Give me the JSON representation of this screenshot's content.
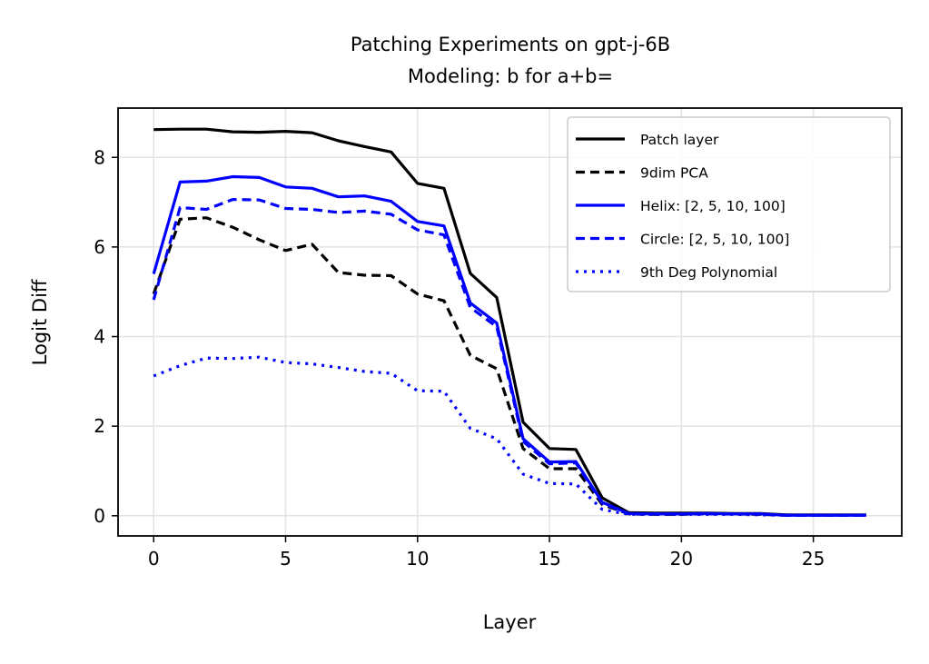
{
  "chart_data": {
    "type": "line",
    "title": "Patching Experiments on gpt-j-6B",
    "subtitle": "Modeling: b for a+b=",
    "xlabel": "Layer",
    "ylabel": "Logit Diff",
    "xlim": [
      -1.35,
      28.35
    ],
    "ylim": [
      -0.45,
      9.1
    ],
    "xticks": [
      0,
      5,
      10,
      15,
      20,
      25
    ],
    "yticks": [
      0,
      2,
      4,
      6,
      8
    ],
    "grid": true,
    "legend_position": "top-right",
    "x": [
      0,
      1,
      2,
      3,
      4,
      5,
      6,
      7,
      8,
      9,
      10,
      11,
      12,
      13,
      14,
      15,
      16,
      17,
      18,
      19,
      20,
      21,
      22,
      23,
      24,
      25,
      26,
      27
    ],
    "series": [
      {
        "name": "Patch layer",
        "color": "#000000",
        "style": "solid",
        "values": [
          8.62,
          8.63,
          8.63,
          8.57,
          8.56,
          8.58,
          8.55,
          8.37,
          8.24,
          8.12,
          7.42,
          7.31,
          5.41,
          4.87,
          2.09,
          1.5,
          1.48,
          0.4,
          0.07,
          0.06,
          0.06,
          0.06,
          0.05,
          0.05,
          0.02,
          0.02,
          0.02,
          0.02
        ]
      },
      {
        "name": "9dim PCA",
        "color": "#000000",
        "style": "dashed",
        "values": [
          4.95,
          6.62,
          6.65,
          6.44,
          6.16,
          5.92,
          6.06,
          5.43,
          5.37,
          5.36,
          4.95,
          4.8,
          3.58,
          3.28,
          1.5,
          1.05,
          1.05,
          0.25,
          0.04,
          0.03,
          0.03,
          0.05,
          0.04,
          0.03,
          0.01,
          0.01,
          0.01,
          0.01
        ]
      },
      {
        "name": "Helix: [2, 5, 10, 100]",
        "color": "#0000ff",
        "style": "solid",
        "values": [
          5.4,
          7.45,
          7.47,
          7.57,
          7.55,
          7.34,
          7.31,
          7.12,
          7.14,
          7.02,
          6.57,
          6.47,
          4.75,
          4.3,
          1.72,
          1.2,
          1.21,
          0.3,
          0.05,
          0.04,
          0.04,
          0.05,
          0.04,
          0.04,
          0.01,
          0.01,
          0.01,
          0.01
        ]
      },
      {
        "name": "Circle: [2, 5, 10, 100]",
        "color": "#0000ff",
        "style": "dashed",
        "values": [
          4.82,
          6.88,
          6.84,
          7.06,
          7.05,
          6.86,
          6.84,
          6.77,
          6.8,
          6.73,
          6.38,
          6.27,
          4.65,
          4.22,
          1.66,
          1.16,
          1.18,
          0.28,
          0.04,
          0.04,
          0.04,
          0.04,
          0.04,
          0.04,
          0.01,
          0.01,
          0.01,
          0.01
        ]
      },
      {
        "name": "9th Deg Polynomial",
        "color": "#0000ff",
        "style": "dotted",
        "values": [
          3.12,
          3.35,
          3.52,
          3.51,
          3.54,
          3.42,
          3.39,
          3.31,
          3.22,
          3.18,
          2.79,
          2.78,
          1.95,
          1.72,
          0.93,
          0.72,
          0.71,
          0.14,
          0.03,
          0.03,
          0.03,
          0.03,
          0.03,
          0.02,
          0.01,
          0.01,
          0.01,
          0.01
        ]
      }
    ]
  }
}
